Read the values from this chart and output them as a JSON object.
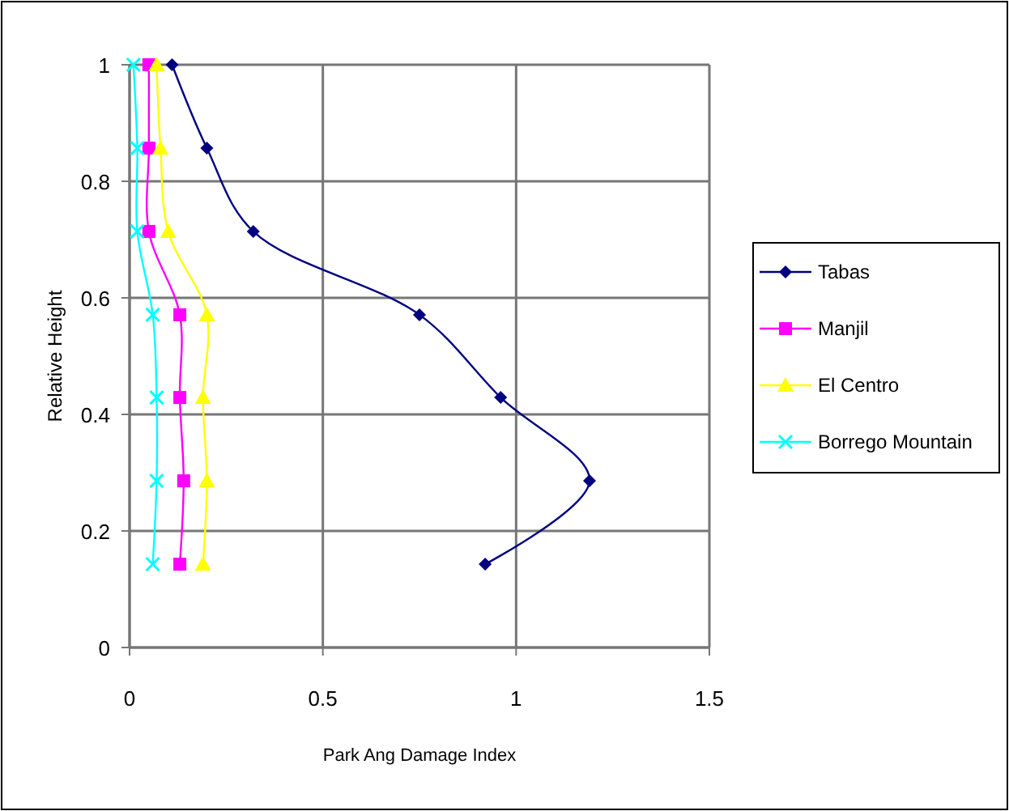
{
  "chart_data": {
    "type": "line",
    "xlabel": "Park Ang Damage Index",
    "ylabel": "Relative Height",
    "xlim": [
      0,
      1.5
    ],
    "xticks": [
      0,
      0.5,
      1,
      1.5
    ],
    "ylim": [
      0,
      1
    ],
    "yticks": [
      0,
      0.2,
      0.4,
      0.6,
      0.8,
      1
    ],
    "grid": true,
    "legend": "right",
    "series": [
      {
        "name": "Tabas",
        "color": "#000080",
        "marker": "diamond",
        "x": [
          0.11,
          0.2,
          0.32,
          0.75,
          0.96,
          1.19,
          0.92
        ],
        "values": [
          1,
          0.857,
          0.714,
          0.571,
          0.429,
          0.286,
          0.143
        ]
      },
      {
        "name": "Manjil",
        "color": "#ff00ff",
        "marker": "square",
        "x": [
          0.05,
          0.05,
          0.05,
          0.13,
          0.13,
          0.14,
          0.13
        ],
        "values": [
          1,
          0.857,
          0.714,
          0.571,
          0.429,
          0.286,
          0.143
        ]
      },
      {
        "name": "El Centro",
        "color": "#ffff00",
        "marker": "triangle",
        "x": [
          0.07,
          0.08,
          0.1,
          0.2,
          0.19,
          0.2,
          0.19
        ],
        "values": [
          1,
          0.857,
          0.714,
          0.571,
          0.429,
          0.286,
          0.143
        ]
      },
      {
        "name": "Borrego Mountain",
        "color": "#00ffff",
        "marker": "cross",
        "x": [
          0.01,
          0.02,
          0.02,
          0.06,
          0.07,
          0.07,
          0.06
        ],
        "values": [
          1,
          0.857,
          0.714,
          0.571,
          0.429,
          0.286,
          0.143
        ]
      }
    ]
  }
}
